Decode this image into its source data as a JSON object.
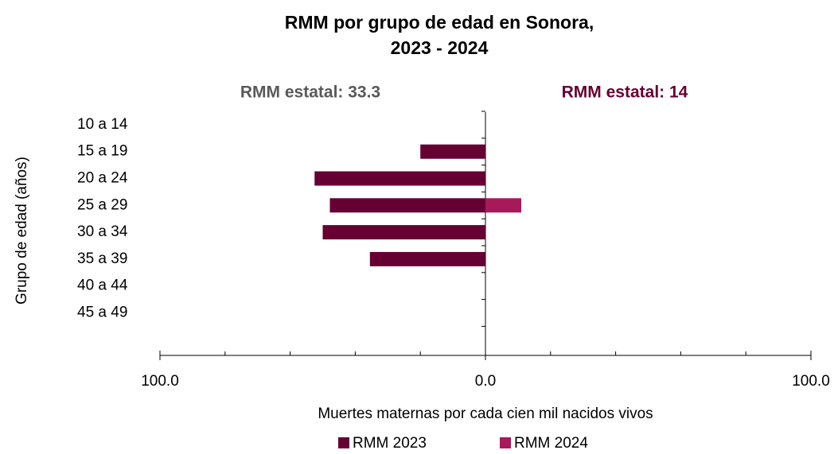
{
  "chart_data": {
    "type": "bar",
    "orientation": "horizontal",
    "title": [
      "RMM por grupo de edad en Sonora,",
      "2023 - 2024"
    ],
    "annotations": [
      {
        "text": "RMM estatal: 33.3",
        "color": "#595959"
      },
      {
        "text": "RMM estatal: 14",
        "color": "#660033"
      }
    ],
    "y_label": "Grupo de edad (años)",
    "x_label": "Muertes maternas por cada cien mil nacidos vivos",
    "categories": [
      "10 a 14",
      "15 a 19",
      "20 a 24",
      "25 a 29",
      "30 a 34",
      "35 a 39",
      "40 a 44",
      "45 a 49"
    ],
    "series": [
      {
        "name": "RMM 2023",
        "color": "#660033",
        "side": "left",
        "values": [
          null,
          20,
          52.5,
          47.8,
          50,
          35.5,
          null,
          null
        ]
      },
      {
        "name": "RMM 2024",
        "color": "#a8195c",
        "side": "right",
        "values": [
          null,
          null,
          null,
          11,
          null,
          null,
          null,
          null
        ]
      }
    ],
    "xlim": [
      -100,
      100
    ],
    "xticks": [
      {
        "value": -100,
        "label": "100.0"
      },
      {
        "value": 0,
        "label": "0.0"
      },
      {
        "value": 100,
        "label": "100.0"
      }
    ],
    "xminor_ticks": [
      -80,
      -60,
      -40,
      -20,
      20,
      40,
      60,
      80
    ],
    "legend": "bottom"
  }
}
